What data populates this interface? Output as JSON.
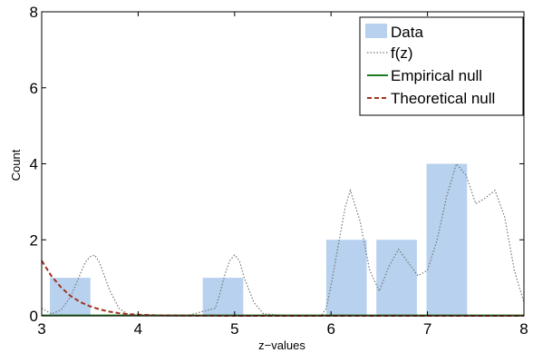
{
  "chart_data": {
    "type": "bar",
    "title": "",
    "xlabel": "z−values",
    "ylabel": "Count",
    "xlim": [
      3,
      8
    ],
    "ylim": [
      0,
      8
    ],
    "xticks": [
      "3",
      "4",
      "5",
      "6",
      "7",
      "8"
    ],
    "yticks": [
      "0",
      "2",
      "4",
      "6",
      "8"
    ],
    "grid": false,
    "legend_position": "top-right",
    "bars": {
      "name": "Data",
      "color": "#b7d1ee",
      "bin_width": 0.42,
      "centers": [
        3.295,
        4.88,
        6.16,
        6.68,
        7.2
      ],
      "values": [
        1,
        1,
        2,
        2,
        4
      ]
    },
    "series": [
      {
        "name": "f(z)",
        "style": "dotted",
        "color": "#777777",
        "x": [
          3.0,
          3.1,
          3.2,
          3.3,
          3.4,
          3.45,
          3.5,
          3.55,
          3.6,
          3.7,
          3.8,
          3.9,
          4.0,
          4.5,
          4.8,
          4.85,
          4.9,
          4.95,
          5.0,
          5.05,
          5.1,
          5.2,
          5.3,
          5.6,
          5.9,
          5.95,
          6.0,
          6.1,
          6.15,
          6.2,
          6.3,
          6.4,
          6.5,
          6.6,
          6.7,
          6.8,
          6.9,
          7.0,
          7.1,
          7.2,
          7.3,
          7.4,
          7.5,
          7.6,
          7.7,
          7.8,
          7.9,
          8.0
        ],
        "y": [
          0.2,
          0.05,
          0.15,
          0.5,
          1.1,
          1.4,
          1.55,
          1.6,
          1.4,
          0.7,
          0.2,
          0.03,
          0.0,
          0.0,
          0.2,
          0.6,
          1.1,
          1.45,
          1.6,
          1.45,
          1.0,
          0.35,
          0.05,
          0.0,
          0.0,
          0.2,
          0.8,
          2.2,
          2.9,
          3.3,
          2.5,
          1.2,
          0.65,
          1.3,
          1.75,
          1.4,
          1.05,
          1.2,
          2.0,
          3.15,
          4.0,
          3.7,
          2.95,
          3.1,
          3.3,
          2.6,
          1.2,
          0.35
        ]
      },
      {
        "name": "Empirical null",
        "style": "solid",
        "color": "#1f7a1f",
        "x": [
          3.0,
          8.0
        ],
        "y": [
          0.01,
          0.01
        ]
      },
      {
        "name": "Theoretical null",
        "style": "dashed",
        "color": "#a0321e",
        "x": [
          3.0,
          3.1,
          3.2,
          3.3,
          3.4,
          3.5,
          3.6,
          3.7,
          3.8,
          3.9,
          4.0,
          4.2,
          4.5,
          5.0,
          6.0,
          7.0,
          8.0
        ],
        "y": [
          1.45,
          1.05,
          0.75,
          0.52,
          0.36,
          0.25,
          0.17,
          0.11,
          0.07,
          0.045,
          0.03,
          0.012,
          0.004,
          0.0,
          0.0,
          0.0,
          0.0
        ]
      }
    ]
  }
}
